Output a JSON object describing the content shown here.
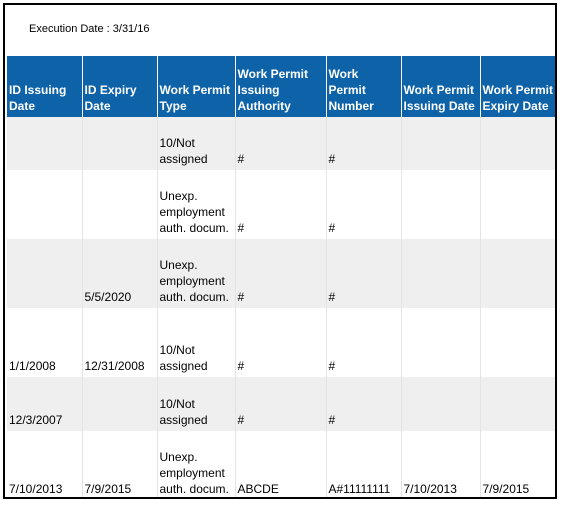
{
  "execution_date": "Execution Date : 3/31/16",
  "columns": [
    "ID Issuing Date",
    "ID Expiry Date",
    "Work Permit Type",
    "Work Permit Issuing Authority",
    "Work Permit Number",
    "Work Permit Issuing Date",
    "Work Permit Expiry Date"
  ],
  "rows": [
    [
      "",
      "",
      "10/Not assigned",
      "#",
      "#",
      "",
      ""
    ],
    [
      "",
      "",
      "Unexp. employment auth. docum.",
      "#",
      "#",
      "",
      ""
    ],
    [
      "",
      "5/5/2020",
      "Unexp. employment auth. docum.",
      "#",
      "#",
      "",
      ""
    ],
    [
      "1/1/2008",
      "12/31/2008",
      "10/Not assigned",
      "#",
      "#",
      "",
      ""
    ],
    [
      "12/3/2007",
      "",
      "10/Not assigned",
      "#",
      "#",
      "",
      ""
    ],
    [
      "7/10/2013",
      "7/9/2015",
      "Unexp. employment auth. docum.",
      "ABCDE",
      "A#11111111",
      "7/10/2013",
      "7/9/2015"
    ]
  ],
  "colors": {
    "header_bg": "#0d62a8",
    "header_text": "#ffffff",
    "row_shaded": "#efefef",
    "row_plain": "#ffffff",
    "border": "#000000"
  }
}
